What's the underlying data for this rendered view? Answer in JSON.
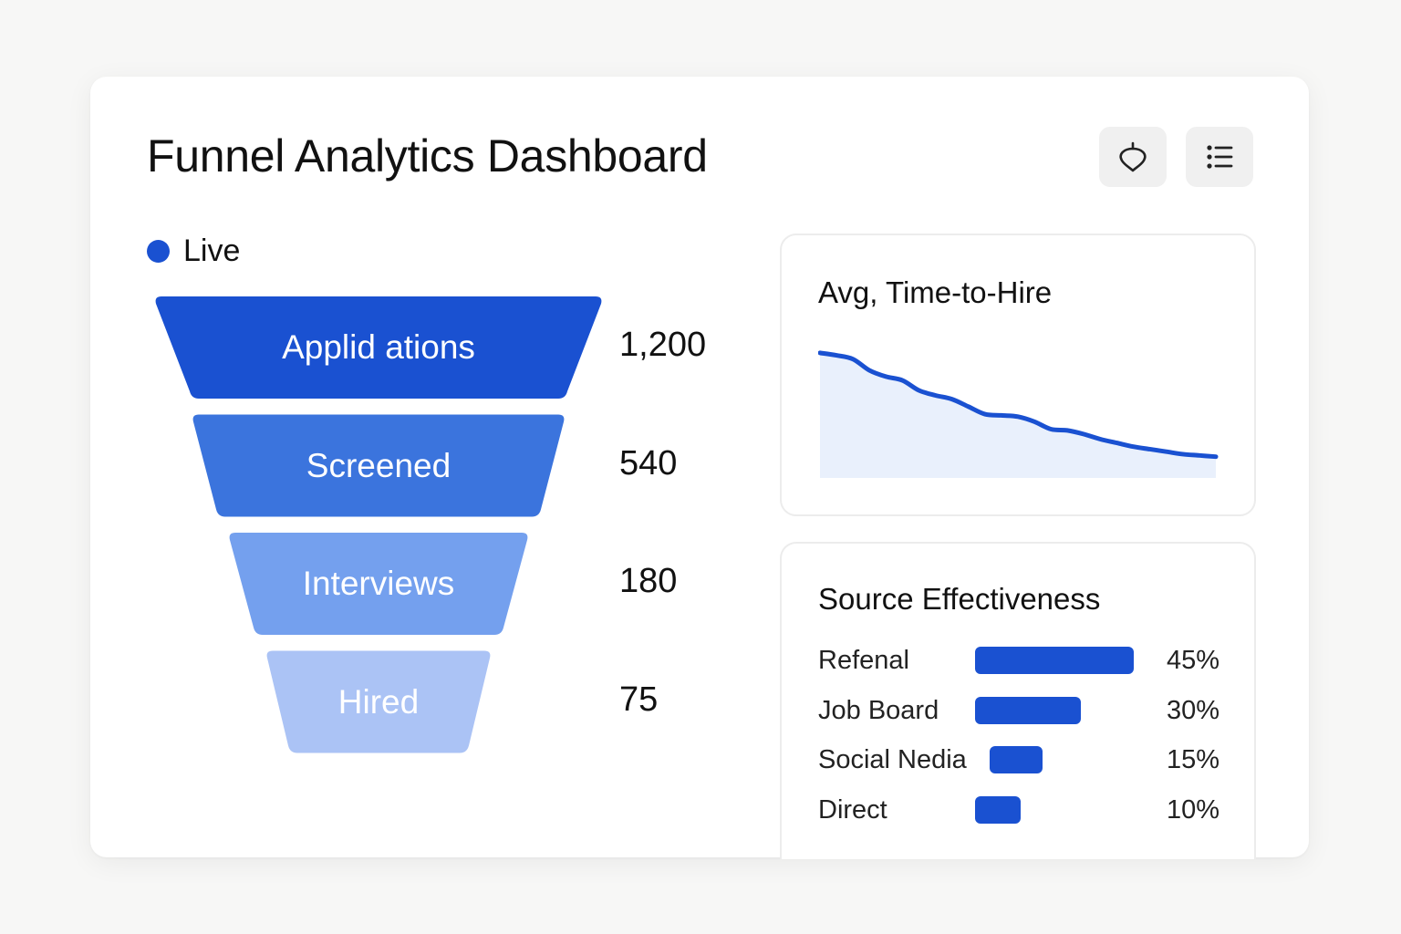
{
  "header": {
    "title": "Funnel Analytics Dashboard",
    "buttons": [
      {
        "icon": "pin-icon"
      },
      {
        "icon": "list-icon"
      }
    ]
  },
  "status": {
    "label": "Live",
    "color": "#1a51d1"
  },
  "chart_data": [
    {
      "type": "funnel",
      "categories": [
        "Applid ations",
        "Screened",
        "Interviews",
        "Hired"
      ],
      "values": [
        1200,
        540,
        180,
        75
      ],
      "value_labels": [
        "1,200",
        "540",
        "180",
        "75"
      ],
      "colors": [
        "#1a51d1",
        "#3b74dd",
        "#74a0ee",
        "#abc3f5"
      ]
    },
    {
      "type": "area",
      "title": "Avg, Time-to-Hire",
      "x": [
        1,
        2,
        3,
        4,
        5,
        6,
        7,
        8,
        9,
        10,
        11,
        12,
        13,
        14,
        15,
        16,
        17,
        18,
        19,
        20,
        21,
        22,
        23,
        24,
        25
      ],
      "values": [
        100,
        98,
        95,
        86,
        81,
        78,
        70,
        66,
        63,
        57,
        51,
        50,
        49,
        45,
        39,
        38,
        35,
        31,
        28,
        25,
        23,
        21,
        19,
        18,
        17
      ],
      "ylim": [
        0,
        105
      ],
      "grid": false,
      "line_color": "#1a51d1",
      "fill_color": "#e9f0fc"
    },
    {
      "type": "bar",
      "title": "Source Effectiveness",
      "orientation": "horizontal",
      "categories": [
        "Refenal",
        "Job Board",
        "Social Nedia",
        "Direct"
      ],
      "values": [
        45,
        30,
        15,
        10
      ],
      "value_labels": [
        "45%",
        "30%",
        "15%",
        "10%"
      ],
      "color": "#1a51d1"
    }
  ]
}
